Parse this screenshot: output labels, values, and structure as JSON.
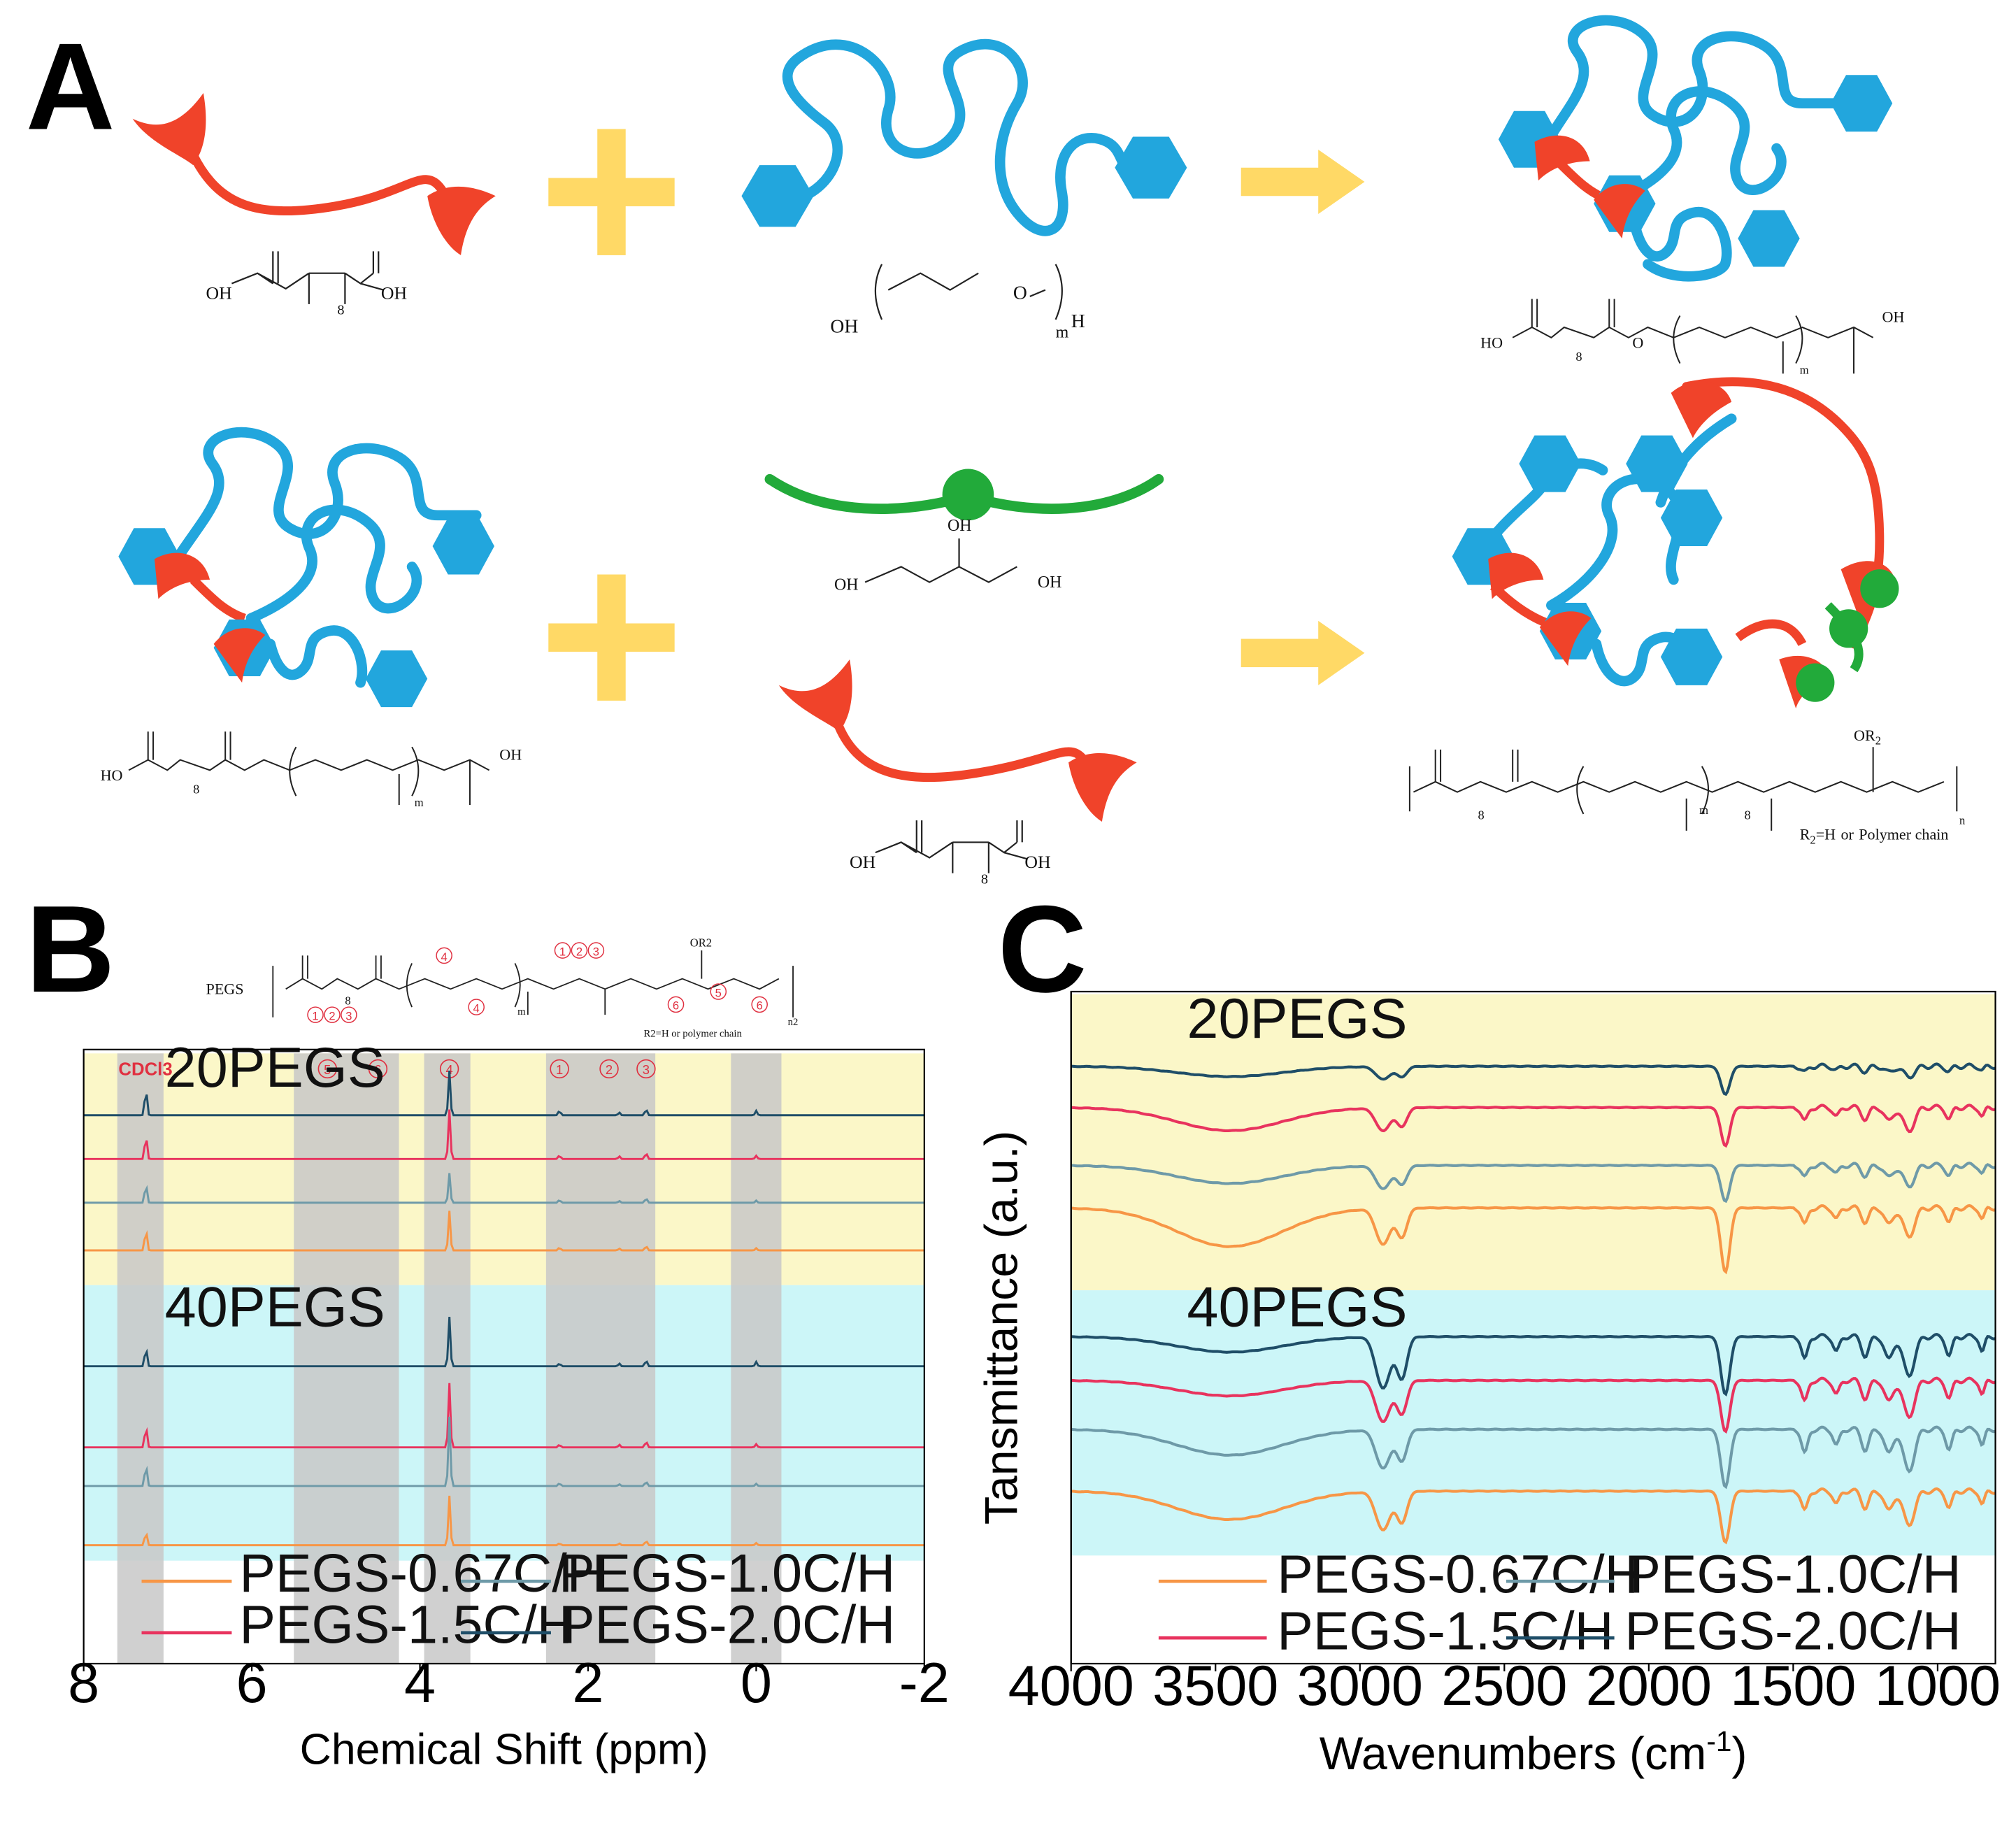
{
  "panel_labels": [
    "A",
    "B",
    "C"
  ],
  "schematic": {
    "formulas": {
      "sebacic_acid": {
        "left_oh": "OH",
        "right_oh": "OH",
        "subscript": "8",
        "oxygen": "O"
      },
      "peg": {
        "left": "OH",
        "oxygen": "O",
        "subscript": "m",
        "end": "H"
      },
      "prepolymer": {
        "left": "HO",
        "right": "OH",
        "sub8": "8",
        "subm": "m",
        "oxygen": "O"
      },
      "glycerol": {
        "top": "OH",
        "left": "OH",
        "right": "OH"
      },
      "product": {
        "sub8": "8",
        "subm": "m",
        "subn": "n",
        "or2": "OR",
        "or2_sub": "2",
        "r2_note": "R",
        "r2_note_sub": "2",
        "r2_note_rest": "=H",
        "r2_or": "or",
        "r2_chain": "Polymer chain",
        "oxygen": "O"
      }
    }
  },
  "panel_b": {
    "structure": {
      "prefix": "PEGS",
      "r2_note": "R2=H or polymer chain",
      "sub8": "8",
      "subm": "m",
      "subn": "n2",
      "or2": "OR2",
      "oxygen": "O",
      "peak_labels": [
        "1",
        "2",
        "3",
        "4",
        "5",
        "6"
      ]
    },
    "solvent_label": "CDCl3",
    "colors": {
      "c067": "#f79646",
      "c10": "#6e9aa8",
      "c15": "#e8335e",
      "c20": "#1f4e68",
      "top_bg": "#fbf7c8",
      "bottom_bg": "#ccf6f8",
      "shade": "#c8c8c8"
    }
  },
  "panel_c": {
    "colors": {
      "c067": "#f79646",
      "c10": "#6e9aa8",
      "c15": "#e8335e",
      "c20": "#1f4e68",
      "top_bg": "#fbf7c8",
      "bottom_bg": "#ccf6f8"
    }
  },
  "chart_data": [
    {
      "type": "line",
      "title": "",
      "xlabel": "Chemical Shift (ppm)",
      "ylabel": "",
      "xlim": [
        8,
        -2
      ],
      "x_reversed": true,
      "xticks": [
        "8",
        "6",
        "4",
        "2",
        "0",
        "-2"
      ],
      "grid": false,
      "groups": [
        "20PEGS",
        "40PEGS"
      ],
      "shaded_regions_ppm": [
        [
          7.6,
          7.05
        ],
        [
          5.5,
          4.25
        ],
        [
          3.95,
          3.4
        ],
        [
          2.5,
          1.2
        ],
        [
          0.3,
          -0.3
        ]
      ],
      "peak_positions_ppm": {
        "CDCl3": 7.26,
        "4": 3.65,
        "1": 2.34,
        "2": 1.63,
        "3": 1.31,
        "TMS": 0.0
      },
      "series": [
        {
          "name": "PEGS-0.67C/H"
        },
        {
          "name": "PEGS-1.0C/H"
        },
        {
          "name": "PEGS-1.5C/H"
        },
        {
          "name": "PEGS-2.0C/H"
        }
      ],
      "legend": {
        "position": "bottom-inside",
        "entries": [
          "PEGS-0.67C/H",
          "PEGS-1.0C/H",
          "PEGS-1.5C/H",
          "PEGS-2.0C/H"
        ]
      }
    },
    {
      "type": "line",
      "title": "",
      "xlabel": "Wavenumbers (cm",
      "xlabel_sup": "-1",
      "xlabel_end": ")",
      "ylabel": "Tansmittance (a.u.)",
      "xlim": [
        4000,
        800
      ],
      "x_reversed": true,
      "xticks": [
        "4000",
        "3500",
        "3000",
        "2500",
        "2000",
        "1500",
        "1000"
      ],
      "grid": false,
      "groups": [
        "20PEGS",
        "40PEGS"
      ],
      "key_bands_cm-1": {
        "O-H": 3450,
        "C-H_asym": 2920,
        "C-H_sym": 2855,
        "C=O": 1735,
        "C-O": 1100
      },
      "series": [
        {
          "name": "PEGS-0.67C/H"
        },
        {
          "name": "PEGS-1.0C/H"
        },
        {
          "name": "PEGS-1.5C/H"
        },
        {
          "name": "PEGS-2.0C/H"
        }
      ],
      "legend": {
        "position": "bottom-inside",
        "entries": [
          "PEGS-0.67C/H",
          "PEGS-1.0C/H",
          "PEGS-1.5C/H",
          "PEGS-2.0C/H"
        ]
      }
    }
  ]
}
